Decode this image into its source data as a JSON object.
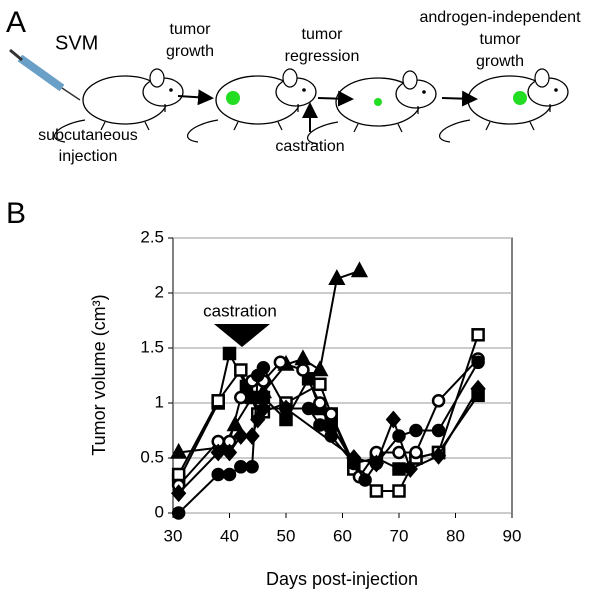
{
  "panel_labels": [
    "A",
    "B"
  ],
  "diagram": {
    "agent": "SVM",
    "injection": [
      "subcutaneous",
      "injection"
    ],
    "steps": [
      {
        "lines": [
          "tumor",
          "growth"
        ]
      },
      {
        "lines": [
          "tumor",
          "regression"
        ]
      },
      {
        "lines": [
          "androgen-independent",
          "tumor",
          "growth"
        ]
      }
    ],
    "intervention": "castration"
  },
  "chart_data": {
    "type": "line",
    "annotation": "castration",
    "xlabel": "Days post-injection",
    "ylabel": "Tumor volume (cm³)",
    "xlim": [
      30,
      90
    ],
    "xticks": [
      30,
      40,
      50,
      60,
      70,
      80,
      90
    ],
    "ylim": [
      0,
      2.5
    ],
    "yticks": [
      0,
      0.5,
      1,
      1.5,
      2,
      2.5
    ],
    "grid": true,
    "series": [
      {
        "marker": "triangle",
        "filled": true,
        "color": "#000000",
        "x": [
          31,
          39,
          41,
          44,
          46,
          50,
          53,
          56,
          59,
          63
        ],
        "values": [
          0.55,
          0.6,
          0.8,
          1.05,
          1.1,
          1.35,
          1.4,
          1.3,
          2.13,
          2.2
        ]
      },
      {
        "marker": "square",
        "filled": true,
        "color": "#000000",
        "x": [
          31,
          38,
          40,
          43,
          44,
          46,
          50,
          54,
          56,
          58,
          62,
          66,
          70,
          73,
          77,
          84
        ],
        "values": [
          0.3,
          1.0,
          1.45,
          1.15,
          1.05,
          1.05,
          0.85,
          1.22,
          0.95,
          0.8,
          0.45,
          0.5,
          0.4,
          0.5,
          0.55,
          1.07
        ]
      },
      {
        "marker": "square",
        "filled": false,
        "color": "#000000",
        "x": [
          31,
          38,
          42,
          45,
          46,
          50,
          56,
          58,
          62,
          66,
          70,
          73,
          77,
          84
        ],
        "values": [
          0.35,
          1.02,
          1.3,
          0.9,
          0.92,
          1.0,
          1.17,
          0.9,
          0.4,
          0.2,
          0.2,
          0.5,
          0.55,
          1.62
        ]
      },
      {
        "marker": "circle",
        "filled": false,
        "color": "#000000",
        "x": [
          31,
          38,
          40,
          42,
          44,
          46,
          49,
          53,
          56,
          58,
          63,
          66,
          70,
          73,
          77,
          84
        ],
        "values": [
          0.25,
          0.65,
          0.65,
          1.05,
          1.2,
          1.2,
          1.37,
          1.3,
          1.0,
          0.9,
          0.33,
          0.55,
          0.55,
          0.55,
          1.02,
          1.4
        ]
      },
      {
        "marker": "circle",
        "filled": true,
        "color": "#000000",
        "x": [
          31,
          38,
          40,
          42,
          44,
          45,
          46,
          50,
          54,
          56,
          58,
          62,
          64,
          66,
          70,
          73,
          77,
          84
        ],
        "values": [
          0,
          0.35,
          0.35,
          0.42,
          0.42,
          1.25,
          1.32,
          0.95,
          0.95,
          0.8,
          0.7,
          0.45,
          0.3,
          0.45,
          0.7,
          0.75,
          0.75,
          1.37
        ]
      },
      {
        "marker": "diamond",
        "filled": true,
        "color": "#000000",
        "x": [
          31,
          38,
          40,
          42,
          44,
          45,
          46,
          50,
          62,
          66,
          69,
          72,
          77,
          84
        ],
        "values": [
          0.18,
          0.55,
          0.55,
          0.7,
          0.7,
          0.85,
          0.95,
          0.95,
          0.5,
          0.45,
          0.85,
          0.4,
          0.52,
          1.13
        ]
      }
    ]
  }
}
